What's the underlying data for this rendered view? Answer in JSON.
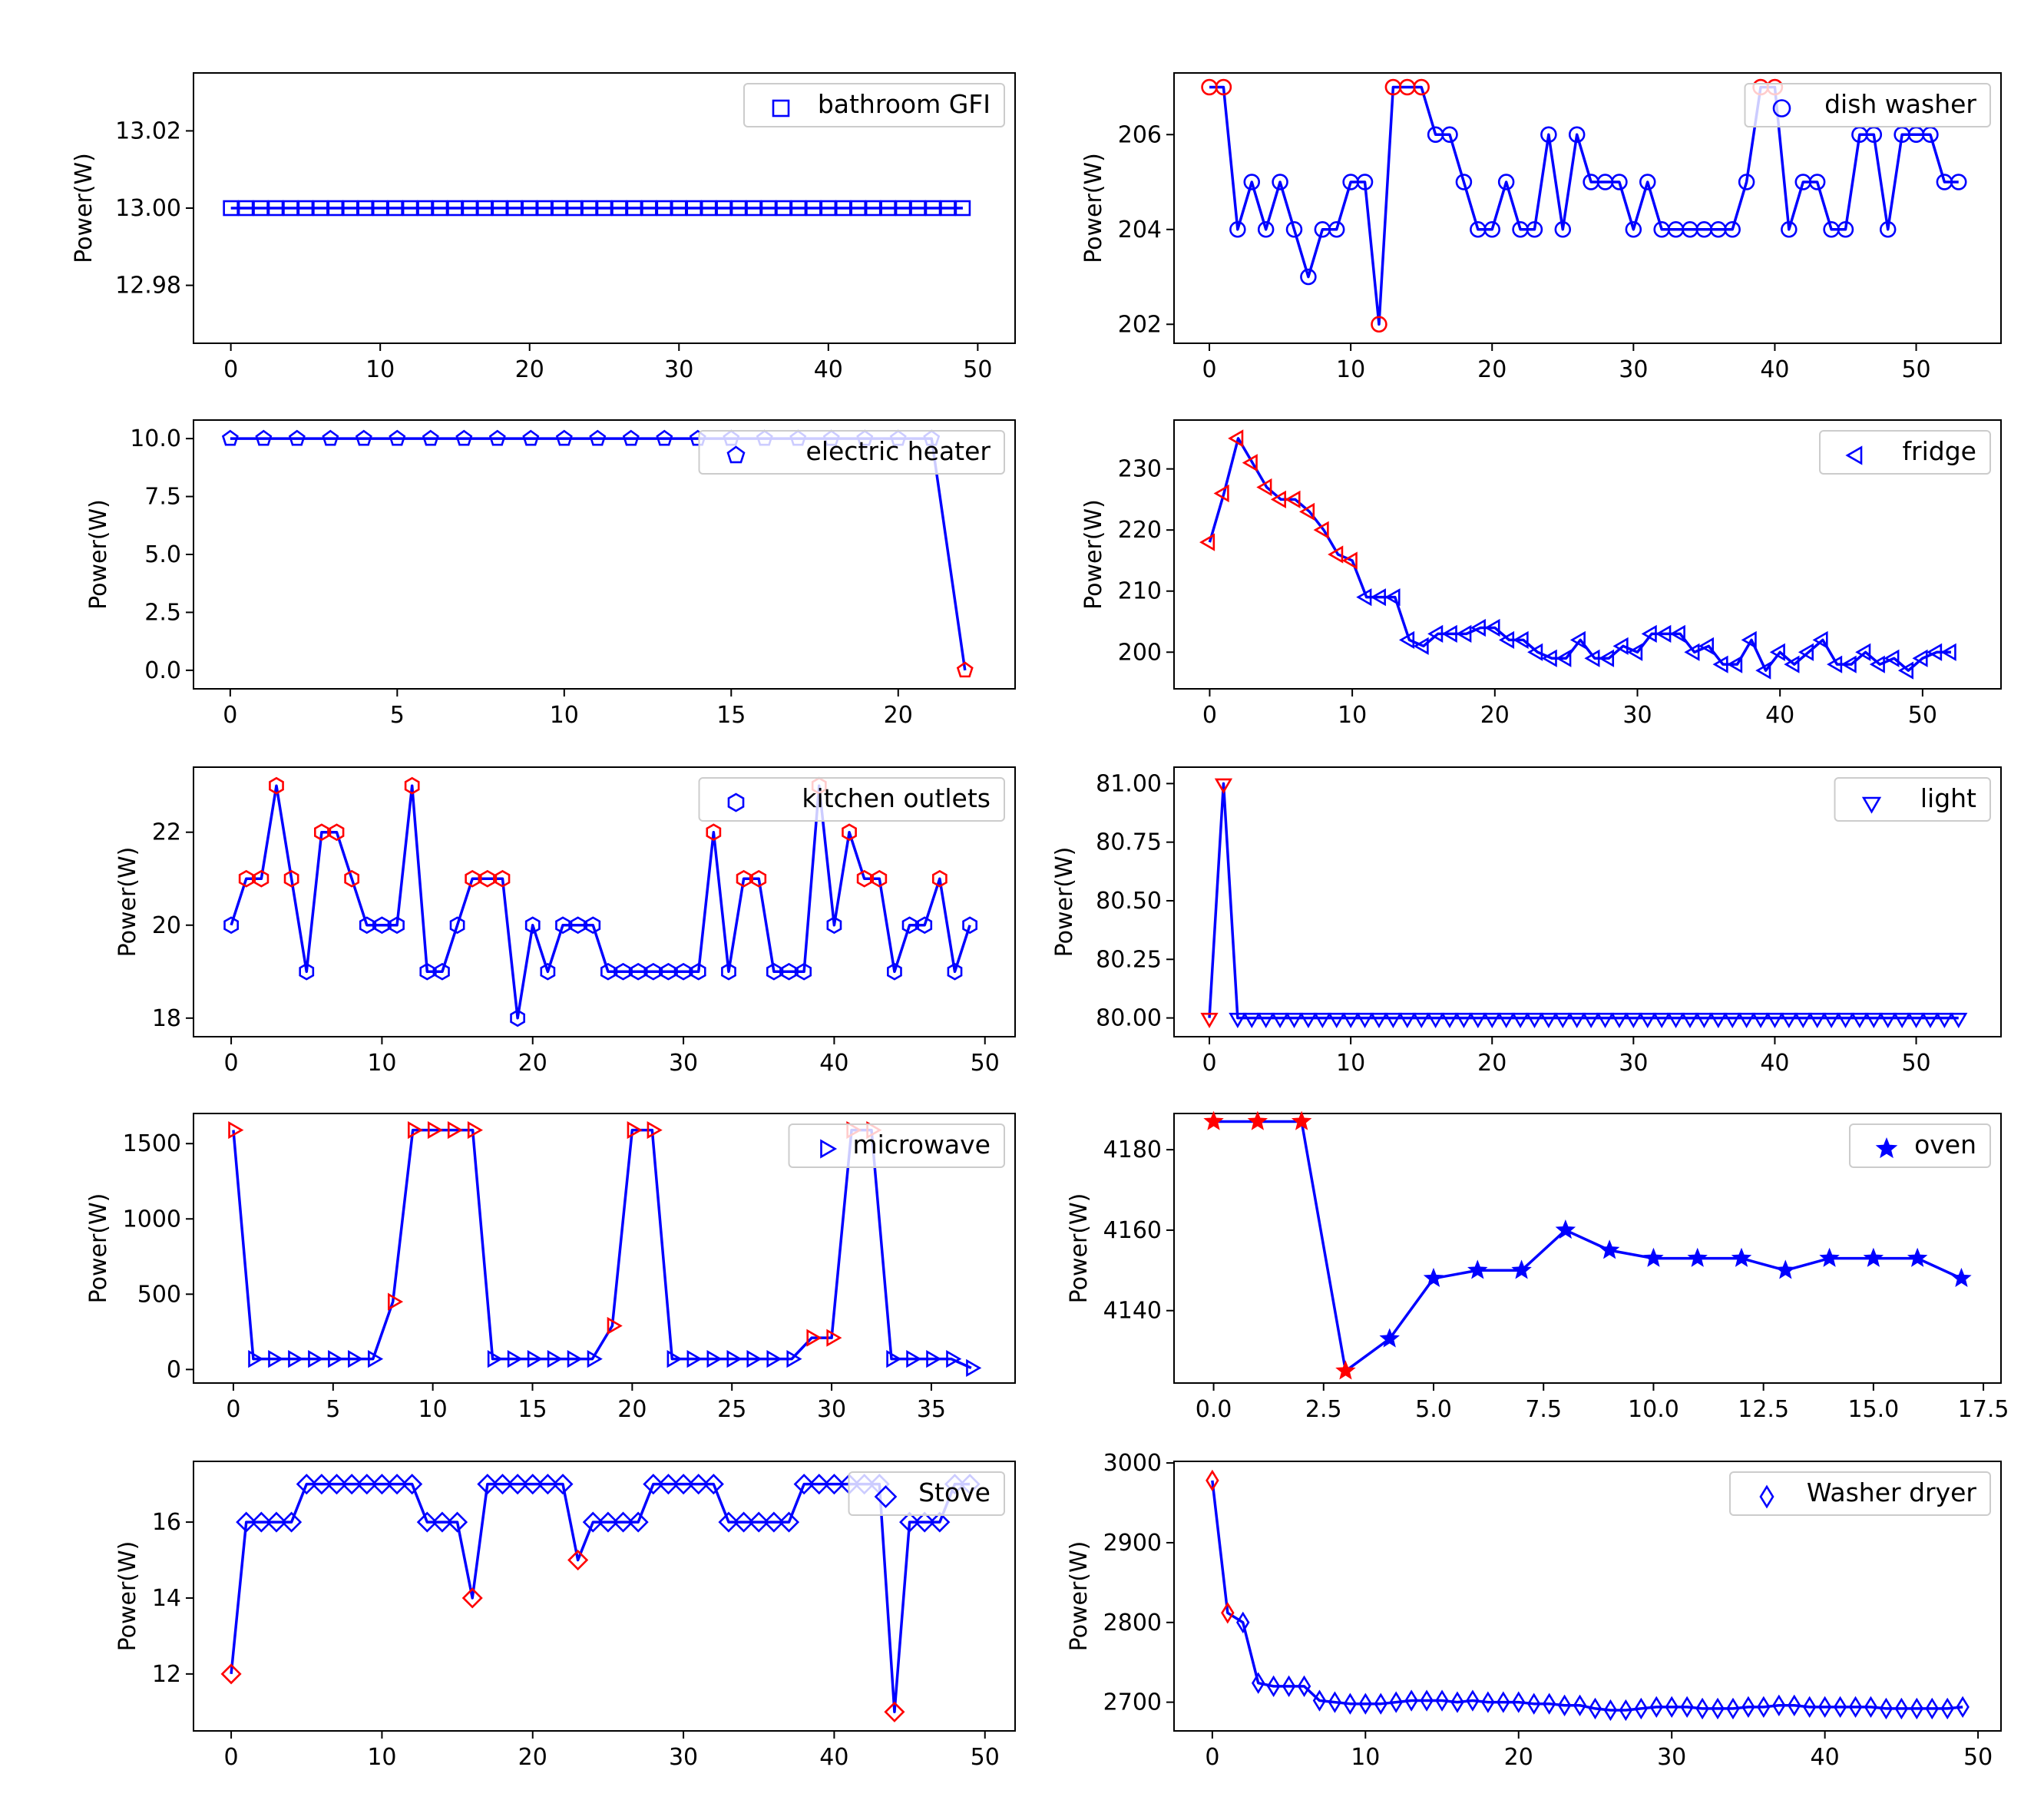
{
  "chart_data": [
    {
      "type": "line",
      "title": "",
      "legend": "bathroom GFI",
      "marker": "square",
      "ylabel": "Power(W)",
      "xlim": [
        -2.5,
        52.5
      ],
      "ylim": [
        12.965,
        13.035
      ],
      "xticks": [
        0,
        10,
        20,
        30,
        40,
        50
      ],
      "yticks": [
        12.98,
        13.0,
        13.02
      ],
      "ytick_labels": [
        "12.98",
        "13.00",
        "13.02"
      ],
      "xtick_labels": [
        "0",
        "10",
        "20",
        "30",
        "40",
        "50"
      ],
      "x_start": 0,
      "values": [
        13,
        13,
        13,
        13,
        13,
        13,
        13,
        13,
        13,
        13,
        13,
        13,
        13,
        13,
        13,
        13,
        13,
        13,
        13,
        13,
        13,
        13,
        13,
        13,
        13,
        13,
        13,
        13,
        13,
        13,
        13,
        13,
        13,
        13,
        13,
        13,
        13,
        13,
        13,
        13,
        13,
        13,
        13,
        13,
        13,
        13,
        13,
        13,
        13,
        13
      ],
      "anomalies": []
    },
    {
      "type": "line",
      "title": "",
      "legend": "dish washer",
      "marker": "circle",
      "ylabel": "Power(W)",
      "xlim": [
        -2.5,
        56
      ],
      "ylim": [
        201.6,
        207.3
      ],
      "xticks": [
        0,
        10,
        20,
        30,
        40,
        50
      ],
      "yticks": [
        202,
        204,
        206
      ],
      "ytick_labels": [
        "202",
        "204",
        "206"
      ],
      "xtick_labels": [
        "0",
        "10",
        "20",
        "30",
        "40",
        "50"
      ],
      "x_start": 0,
      "values": [
        207,
        207,
        204,
        205,
        204,
        205,
        204,
        203,
        204,
        204,
        205,
        205,
        202,
        207,
        207,
        207,
        206,
        206,
        205,
        204,
        204,
        205,
        204,
        204,
        206,
        204,
        206,
        205,
        205,
        205,
        204,
        205,
        204,
        204,
        204,
        204,
        204,
        204,
        205,
        207,
        207,
        204,
        205,
        205,
        204,
        204,
        206,
        206,
        204,
        206,
        206,
        206,
        205,
        205
      ],
      "anomalies": [
        0,
        1,
        12,
        13,
        14,
        15,
        39,
        40
      ]
    },
    {
      "type": "line",
      "title": "",
      "legend": "electric heater",
      "marker": "pentagon",
      "ylabel": "Power(W)",
      "xlim": [
        -1.1,
        23.5
      ],
      "ylim": [
        -0.8,
        10.8
      ],
      "xticks": [
        0,
        5,
        10,
        15,
        20
      ],
      "yticks": [
        0,
        2.5,
        5,
        7.5,
        10
      ],
      "ytick_labels": [
        "0.0",
        "2.5",
        "5.0",
        "7.5",
        "10.0"
      ],
      "xtick_labels": [
        "0",
        "5",
        "10",
        "15",
        "20"
      ],
      "x_start": 0,
      "values": [
        10,
        10,
        10,
        10,
        10,
        10,
        10,
        10,
        10,
        10,
        10,
        10,
        10,
        10,
        10,
        10,
        10,
        10,
        10,
        10,
        10,
        10,
        0
      ],
      "anomalies": [
        22
      ]
    },
    {
      "type": "line",
      "title": "",
      "legend": "fridge",
      "marker": "triangle-left",
      "ylabel": "Power(W)",
      "xlim": [
        -2.5,
        55.5
      ],
      "ylim": [
        194,
        238
      ],
      "xticks": [
        0,
        10,
        20,
        30,
        40,
        50
      ],
      "yticks": [
        200,
        210,
        220,
        230
      ],
      "ytick_labels": [
        "200",
        "210",
        "220",
        "230"
      ],
      "xtick_labels": [
        "0",
        "10",
        "20",
        "30",
        "40",
        "50"
      ],
      "x_start": 0,
      "values": [
        218,
        226,
        235,
        231,
        227,
        225,
        225,
        223,
        220,
        216,
        215,
        209,
        209,
        209,
        202,
        201,
        203,
        203,
        203,
        204,
        204,
        202,
        202,
        200,
        199,
        199,
        202,
        199,
        199,
        201,
        200,
        203,
        203,
        203,
        200,
        201,
        198,
        198,
        202,
        197,
        200,
        198,
        200,
        202,
        198,
        198,
        200,
        198,
        199,
        197,
        199,
        200,
        200
      ],
      "anomalies": [
        0,
        1,
        2,
        3,
        4,
        5,
        6,
        7,
        8,
        9,
        10
      ]
    },
    {
      "type": "line",
      "title": "",
      "legend": "kitchen outlets",
      "marker": "hexagon",
      "ylabel": "Power(W)",
      "xlim": [
        -2.5,
        52
      ],
      "ylim": [
        17.6,
        23.4
      ],
      "xticks": [
        0,
        10,
        20,
        30,
        40,
        50
      ],
      "yticks": [
        18,
        20,
        22
      ],
      "ytick_labels": [
        "18",
        "20",
        "22"
      ],
      "xtick_labels": [
        "0",
        "10",
        "20",
        "30",
        "40",
        "50"
      ],
      "x_start": 0,
      "values": [
        20,
        21,
        21,
        23,
        21,
        19,
        22,
        22,
        21,
        20,
        20,
        20,
        23,
        19,
        19,
        20,
        21,
        21,
        21,
        18,
        20,
        19,
        20,
        20,
        20,
        19,
        19,
        19,
        19,
        19,
        19,
        19,
        22,
        19,
        21,
        21,
        19,
        19,
        19,
        23,
        20,
        22,
        21,
        21,
        19,
        20,
        20,
        21,
        19,
        20
      ],
      "anomalies": [
        1,
        2,
        3,
        4,
        6,
        7,
        8,
        12,
        16,
        17,
        18,
        32,
        34,
        35,
        39,
        41,
        42,
        43,
        47
      ]
    },
    {
      "type": "line",
      "title": "",
      "legend": "light",
      "marker": "triangle-down",
      "ylabel": "Power(W)",
      "xlim": [
        -2.5,
        56
      ],
      "ylim": [
        79.92,
        81.07
      ],
      "xticks": [
        0,
        10,
        20,
        30,
        40,
        50
      ],
      "yticks": [
        80,
        80.25,
        80.5,
        80.75,
        81
      ],
      "ytick_labels": [
        "80.00",
        "80.25",
        "80.50",
        "80.75",
        "81.00"
      ],
      "xtick_labels": [
        "0",
        "10",
        "20",
        "30",
        "40",
        "50"
      ],
      "x_start": 0,
      "values": [
        80,
        81,
        80,
        80,
        80,
        80,
        80,
        80,
        80,
        80,
        80,
        80,
        80,
        80,
        80,
        80,
        80,
        80,
        80,
        80,
        80,
        80,
        80,
        80,
        80,
        80,
        80,
        80,
        80,
        80,
        80,
        80,
        80,
        80,
        80,
        80,
        80,
        80,
        80,
        80,
        80,
        80,
        80,
        80,
        80,
        80,
        80,
        80,
        80,
        80,
        80,
        80,
        80,
        80
      ],
      "anomalies": [
        0,
        1
      ]
    },
    {
      "type": "line",
      "title": "",
      "legend": "microwave",
      "marker": "triangle-right",
      "ylabel": "Power(W)",
      "xlim": [
        -2.0,
        39.2
      ],
      "ylim": [
        -90,
        1700
      ],
      "xticks": [
        0,
        5,
        10,
        15,
        20,
        25,
        30,
        35
      ],
      "yticks": [
        0,
        500,
        1000,
        1500
      ],
      "ytick_labels": [
        "0",
        "500",
        "1000",
        "1500"
      ],
      "xtick_labels": [
        "0",
        "5",
        "10",
        "15",
        "20",
        "25",
        "30",
        "35"
      ],
      "x_start": 0,
      "values": [
        1590,
        70,
        70,
        70,
        70,
        70,
        70,
        70,
        450,
        1590,
        1590,
        1590,
        1590,
        70,
        70,
        70,
        70,
        70,
        70,
        290,
        1590,
        1590,
        70,
        70,
        70,
        70,
        70,
        70,
        70,
        210,
        210,
        1590,
        1590,
        70,
        70,
        70,
        70,
        10
      ],
      "anomalies": [
        0,
        8,
        9,
        10,
        11,
        12,
        19,
        20,
        21,
        29,
        30,
        31,
        32
      ]
    },
    {
      "type": "line",
      "title": "",
      "legend": "oven",
      "marker": "star",
      "ylabel": "Power(W)",
      "xlim": [
        -0.9,
        17.9
      ],
      "ylim": [
        4122,
        4189
      ],
      "xticks": [
        0,
        2.5,
        5,
        7.5,
        10,
        12.5,
        15,
        17.5
      ],
      "yticks": [
        4140,
        4160,
        4180
      ],
      "ytick_labels": [
        "4140",
        "4160",
        "4180"
      ],
      "xtick_labels": [
        "0.0",
        "2.5",
        "5.0",
        "7.5",
        "10.0",
        "12.5",
        "15.0",
        "17.5"
      ],
      "x_start": 0,
      "values": [
        4187,
        4187,
        4187,
        4125,
        4133,
        4148,
        4150,
        4150,
        4160,
        4155,
        4153,
        4153,
        4153,
        4150,
        4153,
        4153,
        4153,
        4148
      ],
      "anomalies": [
        0,
        1,
        2,
        3
      ]
    },
    {
      "type": "line",
      "title": "",
      "legend": "Stove",
      "marker": "diamond",
      "ylabel": "Power(W)",
      "xlim": [
        -2.5,
        52
      ],
      "ylim": [
        10.5,
        17.6
      ],
      "xticks": [
        0,
        10,
        20,
        30,
        40,
        50
      ],
      "yticks": [
        12,
        14,
        16
      ],
      "ytick_labels": [
        "12",
        "14",
        "16"
      ],
      "xtick_labels": [
        "0",
        "10",
        "20",
        "30",
        "40",
        "50"
      ],
      "x_start": 0,
      "values": [
        12,
        16,
        16,
        16,
        16,
        17,
        17,
        17,
        17,
        17,
        17,
        17,
        17,
        16,
        16,
        16,
        14,
        17,
        17,
        17,
        17,
        17,
        17,
        15,
        16,
        16,
        16,
        16,
        17,
        17,
        17,
        17,
        17,
        16,
        16,
        16,
        16,
        16,
        17,
        17,
        17,
        17,
        17,
        17,
        11,
        16,
        16,
        16,
        17,
        17
      ],
      "anomalies": [
        0,
        16,
        23,
        44
      ]
    },
    {
      "type": "line",
      "title": "",
      "legend": "Washer dryer",
      "marker": "thin-diamond",
      "ylabel": "Power(W)",
      "xlim": [
        -2.5,
        51.5
      ],
      "ylim": [
        2664,
        3002
      ],
      "xticks": [
        0,
        10,
        20,
        30,
        40,
        50
      ],
      "yticks": [
        2700,
        2800,
        2900,
        3000
      ],
      "ytick_labels": [
        "2700",
        "2800",
        "2900",
        "3000"
      ],
      "xtick_labels": [
        "0",
        "10",
        "20",
        "30",
        "40",
        "50"
      ],
      "x_start": 0,
      "values": [
        2978,
        2812,
        2800,
        2724,
        2720,
        2720,
        2720,
        2702,
        2700,
        2698,
        2698,
        2698,
        2700,
        2702,
        2702,
        2702,
        2700,
        2702,
        2700,
        2700,
        2700,
        2698,
        2698,
        2696,
        2696,
        2692,
        2690,
        2690,
        2692,
        2694,
        2694,
        2694,
        2692,
        2692,
        2692,
        2694,
        2694,
        2696,
        2696,
        2694,
        2694,
        2694,
        2694,
        2694,
        2692,
        2692,
        2692,
        2692,
        2692,
        2694
      ],
      "anomalies": [
        0,
        1
      ]
    }
  ],
  "colors": {
    "line": "#0000ff",
    "marker": "#0000ff",
    "anomaly": "#ff0000",
    "axes": "#000000",
    "legend_border": "#cccccc"
  }
}
